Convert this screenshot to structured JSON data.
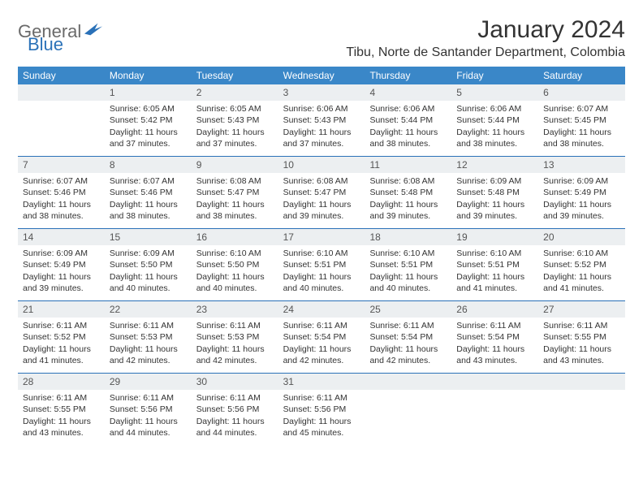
{
  "brand": {
    "part1": "General",
    "part2": "Blue"
  },
  "title": "January 2024",
  "location": "Tibu, Norte de Santander Department, Colombia",
  "colors": {
    "header_bg": "#3a87c8",
    "week_border": "#2a71b8",
    "daynum_bg": "#eceff1",
    "text": "#333333",
    "logo_gray": "#6a6a6a",
    "logo_blue": "#2a71b8"
  },
  "weekdays": [
    "Sunday",
    "Monday",
    "Tuesday",
    "Wednesday",
    "Thursday",
    "Friday",
    "Saturday"
  ],
  "weeks": [
    [
      {
        "n": "",
        "empty": true
      },
      {
        "n": "1",
        "sr": "Sunrise: 6:05 AM",
        "ss": "Sunset: 5:42 PM",
        "d1": "Daylight: 11 hours",
        "d2": "and 37 minutes."
      },
      {
        "n": "2",
        "sr": "Sunrise: 6:05 AM",
        "ss": "Sunset: 5:43 PM",
        "d1": "Daylight: 11 hours",
        "d2": "and 37 minutes."
      },
      {
        "n": "3",
        "sr": "Sunrise: 6:06 AM",
        "ss": "Sunset: 5:43 PM",
        "d1": "Daylight: 11 hours",
        "d2": "and 37 minutes."
      },
      {
        "n": "4",
        "sr": "Sunrise: 6:06 AM",
        "ss": "Sunset: 5:44 PM",
        "d1": "Daylight: 11 hours",
        "d2": "and 38 minutes."
      },
      {
        "n": "5",
        "sr": "Sunrise: 6:06 AM",
        "ss": "Sunset: 5:44 PM",
        "d1": "Daylight: 11 hours",
        "d2": "and 38 minutes."
      },
      {
        "n": "6",
        "sr": "Sunrise: 6:07 AM",
        "ss": "Sunset: 5:45 PM",
        "d1": "Daylight: 11 hours",
        "d2": "and 38 minutes."
      }
    ],
    [
      {
        "n": "7",
        "sr": "Sunrise: 6:07 AM",
        "ss": "Sunset: 5:46 PM",
        "d1": "Daylight: 11 hours",
        "d2": "and 38 minutes."
      },
      {
        "n": "8",
        "sr": "Sunrise: 6:07 AM",
        "ss": "Sunset: 5:46 PM",
        "d1": "Daylight: 11 hours",
        "d2": "and 38 minutes."
      },
      {
        "n": "9",
        "sr": "Sunrise: 6:08 AM",
        "ss": "Sunset: 5:47 PM",
        "d1": "Daylight: 11 hours",
        "d2": "and 38 minutes."
      },
      {
        "n": "10",
        "sr": "Sunrise: 6:08 AM",
        "ss": "Sunset: 5:47 PM",
        "d1": "Daylight: 11 hours",
        "d2": "and 39 minutes."
      },
      {
        "n": "11",
        "sr": "Sunrise: 6:08 AM",
        "ss": "Sunset: 5:48 PM",
        "d1": "Daylight: 11 hours",
        "d2": "and 39 minutes."
      },
      {
        "n": "12",
        "sr": "Sunrise: 6:09 AM",
        "ss": "Sunset: 5:48 PM",
        "d1": "Daylight: 11 hours",
        "d2": "and 39 minutes."
      },
      {
        "n": "13",
        "sr": "Sunrise: 6:09 AM",
        "ss": "Sunset: 5:49 PM",
        "d1": "Daylight: 11 hours",
        "d2": "and 39 minutes."
      }
    ],
    [
      {
        "n": "14",
        "sr": "Sunrise: 6:09 AM",
        "ss": "Sunset: 5:49 PM",
        "d1": "Daylight: 11 hours",
        "d2": "and 39 minutes."
      },
      {
        "n": "15",
        "sr": "Sunrise: 6:09 AM",
        "ss": "Sunset: 5:50 PM",
        "d1": "Daylight: 11 hours",
        "d2": "and 40 minutes."
      },
      {
        "n": "16",
        "sr": "Sunrise: 6:10 AM",
        "ss": "Sunset: 5:50 PM",
        "d1": "Daylight: 11 hours",
        "d2": "and 40 minutes."
      },
      {
        "n": "17",
        "sr": "Sunrise: 6:10 AM",
        "ss": "Sunset: 5:51 PM",
        "d1": "Daylight: 11 hours",
        "d2": "and 40 minutes."
      },
      {
        "n": "18",
        "sr": "Sunrise: 6:10 AM",
        "ss": "Sunset: 5:51 PM",
        "d1": "Daylight: 11 hours",
        "d2": "and 40 minutes."
      },
      {
        "n": "19",
        "sr": "Sunrise: 6:10 AM",
        "ss": "Sunset: 5:51 PM",
        "d1": "Daylight: 11 hours",
        "d2": "and 41 minutes."
      },
      {
        "n": "20",
        "sr": "Sunrise: 6:10 AM",
        "ss": "Sunset: 5:52 PM",
        "d1": "Daylight: 11 hours",
        "d2": "and 41 minutes."
      }
    ],
    [
      {
        "n": "21",
        "sr": "Sunrise: 6:11 AM",
        "ss": "Sunset: 5:52 PM",
        "d1": "Daylight: 11 hours",
        "d2": "and 41 minutes."
      },
      {
        "n": "22",
        "sr": "Sunrise: 6:11 AM",
        "ss": "Sunset: 5:53 PM",
        "d1": "Daylight: 11 hours",
        "d2": "and 42 minutes."
      },
      {
        "n": "23",
        "sr": "Sunrise: 6:11 AM",
        "ss": "Sunset: 5:53 PM",
        "d1": "Daylight: 11 hours",
        "d2": "and 42 minutes."
      },
      {
        "n": "24",
        "sr": "Sunrise: 6:11 AM",
        "ss": "Sunset: 5:54 PM",
        "d1": "Daylight: 11 hours",
        "d2": "and 42 minutes."
      },
      {
        "n": "25",
        "sr": "Sunrise: 6:11 AM",
        "ss": "Sunset: 5:54 PM",
        "d1": "Daylight: 11 hours",
        "d2": "and 42 minutes."
      },
      {
        "n": "26",
        "sr": "Sunrise: 6:11 AM",
        "ss": "Sunset: 5:54 PM",
        "d1": "Daylight: 11 hours",
        "d2": "and 43 minutes."
      },
      {
        "n": "27",
        "sr": "Sunrise: 6:11 AM",
        "ss": "Sunset: 5:55 PM",
        "d1": "Daylight: 11 hours",
        "d2": "and 43 minutes."
      }
    ],
    [
      {
        "n": "28",
        "sr": "Sunrise: 6:11 AM",
        "ss": "Sunset: 5:55 PM",
        "d1": "Daylight: 11 hours",
        "d2": "and 43 minutes."
      },
      {
        "n": "29",
        "sr": "Sunrise: 6:11 AM",
        "ss": "Sunset: 5:56 PM",
        "d1": "Daylight: 11 hours",
        "d2": "and 44 minutes."
      },
      {
        "n": "30",
        "sr": "Sunrise: 6:11 AM",
        "ss": "Sunset: 5:56 PM",
        "d1": "Daylight: 11 hours",
        "d2": "and 44 minutes."
      },
      {
        "n": "31",
        "sr": "Sunrise: 6:11 AM",
        "ss": "Sunset: 5:56 PM",
        "d1": "Daylight: 11 hours",
        "d2": "and 45 minutes."
      },
      {
        "n": "",
        "empty": true
      },
      {
        "n": "",
        "empty": true
      },
      {
        "n": "",
        "empty": true
      }
    ]
  ]
}
